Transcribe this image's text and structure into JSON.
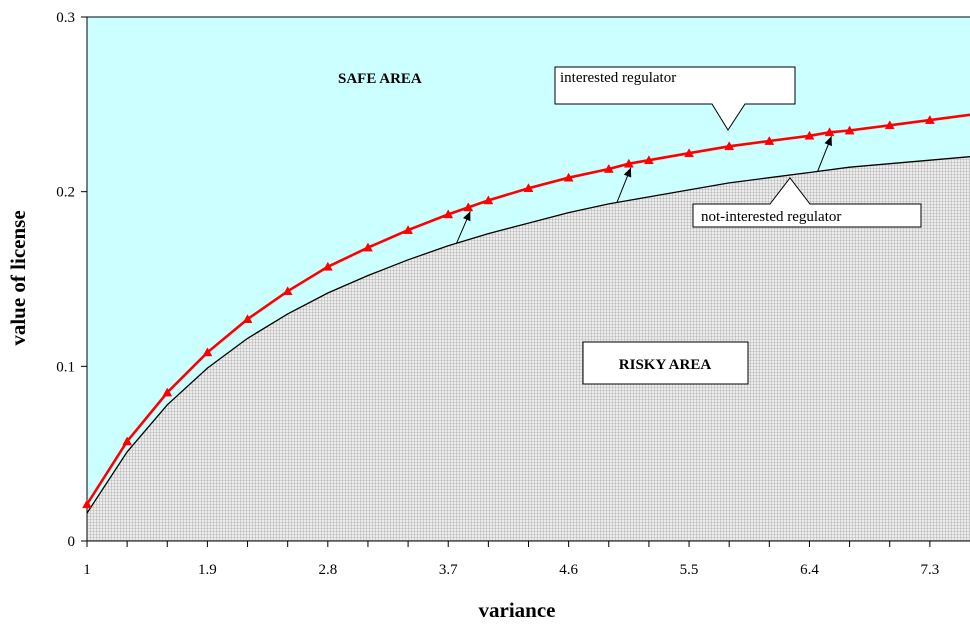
{
  "chart_data": {
    "type": "line",
    "xlabel": "variance",
    "ylabel": "value of license",
    "xlim": [
      1,
      7.6
    ],
    "ylim": [
      0,
      0.3
    ],
    "x_ticks": [
      1,
      1.3,
      1.6,
      1.9,
      2.2,
      2.5,
      2.8,
      3.1,
      3.4,
      3.7,
      4.0,
      4.3,
      4.6,
      4.9,
      5.2,
      5.5,
      5.8,
      6.1,
      6.4,
      6.7,
      7.0,
      7.3
    ],
    "x_tick_labels": [
      "1",
      "",
      "",
      "1.9",
      "",
      "",
      "2.8",
      "",
      "",
      "3.7",
      "",
      "",
      "4.6",
      "",
      "",
      "5.5",
      "",
      "",
      "6.4",
      "",
      "",
      "7.3"
    ],
    "y_ticks": [
      0,
      0.1,
      0.2,
      0.3
    ],
    "y_tick_labels": [
      "0",
      "0.1",
      "0.2",
      "0.3"
    ],
    "series": [
      {
        "name": "interested regulator",
        "color": "#ff0000",
        "marker": "triangle",
        "x": [
          1,
          1.3,
          1.6,
          1.9,
          2.2,
          2.5,
          2.8,
          3.1,
          3.4,
          3.7,
          3.85,
          4.0,
          4.3,
          4.6,
          4.9,
          5.05,
          5.2,
          5.5,
          5.8,
          6.1,
          6.4,
          6.55,
          6.7,
          7.0,
          7.3
        ],
        "y": [
          0.021,
          0.057,
          0.085,
          0.108,
          0.127,
          0.143,
          0.157,
          0.168,
          0.178,
          0.187,
          0.191,
          0.195,
          0.202,
          0.208,
          0.213,
          0.216,
          0.218,
          0.222,
          0.226,
          0.229,
          0.232,
          0.234,
          0.235,
          0.238,
          0.241
        ]
      },
      {
        "name": "not-interested regulator",
        "color": "#000000",
        "marker": "none",
        "x": [
          1,
          1.3,
          1.6,
          1.9,
          2.2,
          2.5,
          2.8,
          3.1,
          3.4,
          3.7,
          4.0,
          4.3,
          4.6,
          4.9,
          5.2,
          5.5,
          5.8,
          6.1,
          6.4,
          6.7,
          7.0,
          7.3,
          7.6
        ],
        "y": [
          0.016,
          0.051,
          0.078,
          0.099,
          0.116,
          0.13,
          0.142,
          0.152,
          0.161,
          0.169,
          0.176,
          0.182,
          0.188,
          0.193,
          0.197,
          0.201,
          0.205,
          0.208,
          0.211,
          0.214,
          0.216,
          0.218,
          0.22
        ]
      }
    ],
    "areas": {
      "safe": {
        "label": "SAFE AREA",
        "color": "#ccffff"
      },
      "risky": {
        "label": "RISKY AREA",
        "color": "#e6e6e6"
      }
    },
    "callouts": {
      "interested": "interested regulator",
      "not_interested": "not-interested regulator"
    },
    "grid": false,
    "legend": "none"
  }
}
